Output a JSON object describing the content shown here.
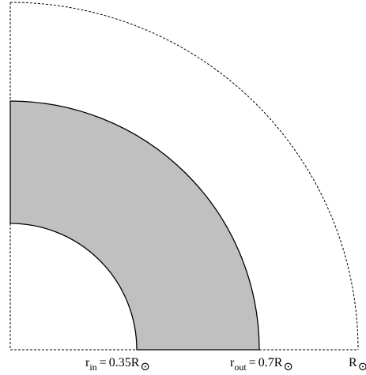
{
  "diagram": {
    "shell_fill": "#c0c0c0",
    "outline_color": "#000000",
    "boundary_color": "#000000",
    "solar_symbol": "⊙",
    "labels": {
      "r_in": {
        "symbol": "r",
        "subscript": "in",
        "equals": "=",
        "value": "0.35R"
      },
      "r_out": {
        "symbol": "r",
        "subscript": "out",
        "equals": "=",
        "value": "0.7R"
      },
      "r_sun": {
        "symbol": "R"
      }
    }
  }
}
